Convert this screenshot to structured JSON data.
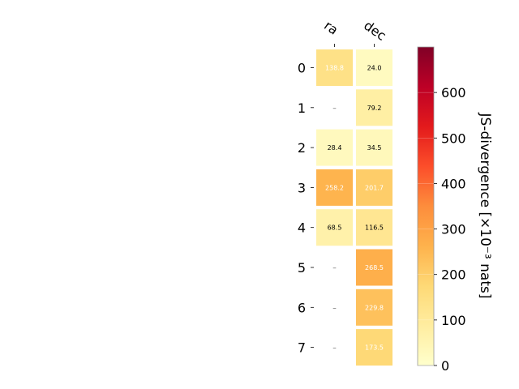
{
  "chart_data": {
    "type": "heatmap",
    "title": "",
    "x_labels": [
      "ra",
      "dec"
    ],
    "y_labels": [
      "0",
      "1",
      "2",
      "3",
      "4",
      "5",
      "6",
      "7"
    ],
    "values": [
      [
        138.8,
        24.0
      ],
      [
        null,
        79.2
      ],
      [
        28.4,
        34.5
      ],
      [
        258.2,
        201.7
      ],
      [
        68.5,
        116.5
      ],
      [
        null,
        268.5
      ],
      [
        null,
        229.8
      ],
      [
        null,
        173.5
      ]
    ],
    "missing_label": "–",
    "colorbar": {
      "label": "JS-divergence [×10⁻³ nats]",
      "min": 0,
      "max": 700,
      "ticks": [
        0,
        100,
        200,
        300,
        400,
        500,
        600
      ],
      "colormap": "YlOrRd"
    },
    "colors": {
      "light_text_threshold": 130,
      "light_text": "#ffffff",
      "dark_text": "#000000",
      "missing_text": "#555555"
    }
  }
}
